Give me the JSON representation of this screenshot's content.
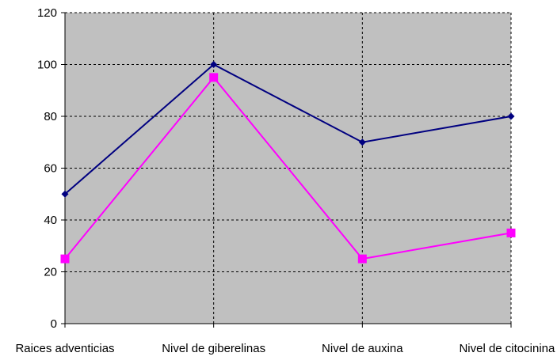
{
  "chart_data": {
    "type": "line",
    "categories": [
      "Raices adventicias",
      "Nivel de giberelinas",
      "Nivel de auxina",
      "Nivel de citocinina"
    ],
    "series": [
      {
        "values": [
          50,
          100,
          70,
          80
        ],
        "color": "#000080",
        "marker": "diamond"
      },
      {
        "values": [
          25,
          95,
          25,
          35
        ],
        "color": "#ff00ff",
        "marker": "square"
      }
    ],
    "yticks": [
      "0",
      "20",
      "40",
      "60",
      "80",
      "100",
      "120"
    ],
    "ylim": [
      0,
      120
    ],
    "grid": "dashed, horizontal and vertical",
    "plot_background": "#c0c0c0"
  }
}
